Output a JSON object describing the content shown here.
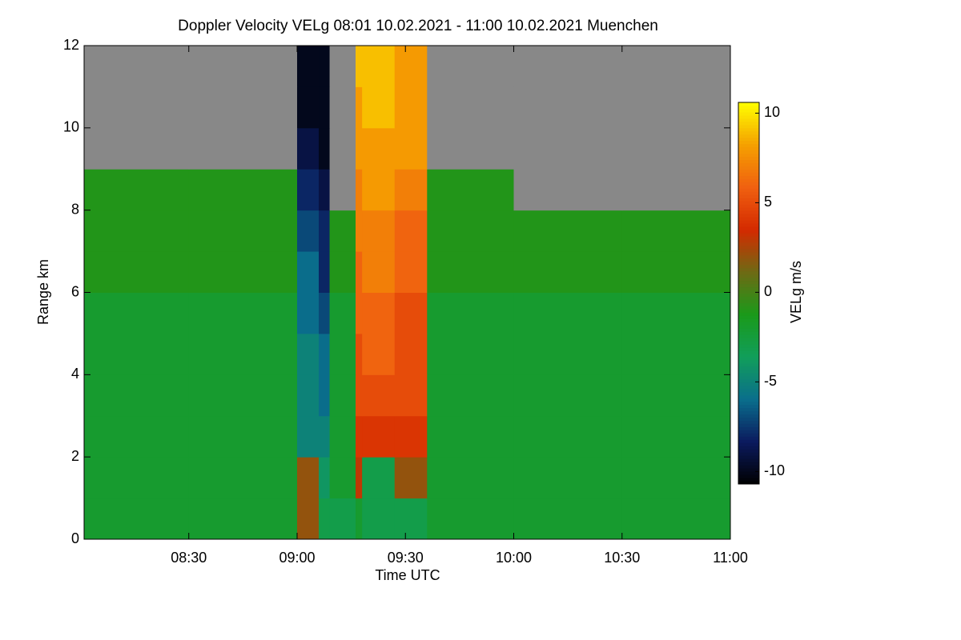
{
  "chart_data": {
    "type": "heatmap",
    "title": "Doppler Velocity VELg   08:01 10.02.2021 - 11:00 10.02.2021 Muenchen",
    "x_label": "Time UTC",
    "y_label": "Range km",
    "colorbar_label": "VELg m/s",
    "x": [
      8.0167,
      8.5,
      9.0,
      9.1,
      9.15,
      9.27,
      9.3,
      9.45,
      9.6,
      10.0,
      10.5,
      11.0
    ],
    "y": [
      0,
      1,
      2,
      3,
      4,
      5,
      6,
      7,
      8,
      9,
      10,
      11,
      12
    ],
    "z": [
      [
        -2,
        -2,
        2,
        -3,
        -3,
        -2,
        -3,
        -3,
        -2,
        -2,
        -2
      ],
      [
        -2,
        -2,
        2,
        -4,
        -2,
        3,
        -3,
        2,
        -2,
        -2,
        -2
      ],
      [
        -2,
        -2,
        -5,
        -5,
        -2,
        4,
        4,
        4,
        -2,
        -2,
        -2
      ],
      [
        -2,
        -2,
        -5,
        -6,
        -2,
        5,
        5,
        5,
        -2,
        -2,
        -2
      ],
      [
        -2,
        -2,
        -5,
        -6,
        -2,
        5,
        6,
        5,
        -2,
        -2,
        -2
      ],
      [
        -2,
        -2,
        -6,
        -7,
        -2,
        6,
        6,
        5,
        -2,
        -2,
        -2
      ],
      [
        -1,
        -1,
        -6,
        -8,
        -1,
        6,
        7,
        6,
        -1,
        -1,
        -1
      ],
      [
        -1,
        -1,
        -7,
        -8,
        -1,
        7,
        7,
        6,
        -1,
        -1,
        -1
      ],
      [
        -1,
        -1,
        -8,
        -9,
        null,
        7,
        8,
        7,
        -1,
        null,
        null
      ],
      [
        null,
        null,
        -9,
        -10,
        null,
        8,
        8,
        8,
        null,
        null,
        null
      ],
      [
        null,
        null,
        -10,
        -10,
        null,
        8,
        9,
        8,
        null,
        null,
        null
      ],
      [
        null,
        null,
        -10,
        -10,
        null,
        9,
        9,
        8,
        null,
        null,
        null
      ]
    ],
    "null_color": "#888888",
    "colormap": [
      "#000000",
      "#0b1a5e",
      "#0a6e8c",
      "#119e5a",
      "#1a9a1a",
      "#6e6a14",
      "#d42a00",
      "#f06010",
      "#f5a000",
      "#ffff00"
    ],
    "clim": [
      -10.7,
      10.6
    ],
    "cticks": [
      10,
      5,
      0,
      -5,
      -10
    ],
    "xlim": [
      8.0167,
      11.0
    ],
    "xticks": [
      {
        "value": 8.5,
        "label": "08:30"
      },
      {
        "value": 9.0,
        "label": "09:00"
      },
      {
        "value": 9.5,
        "label": "09:30"
      },
      {
        "value": 10.0,
        "label": "10:00"
      },
      {
        "value": 10.5,
        "label": "10:30"
      },
      {
        "value": 11.0,
        "label": "11:00"
      }
    ],
    "ylim": [
      0,
      12
    ],
    "yticks": [
      0,
      2,
      4,
      6,
      8,
      10,
      12
    ]
  }
}
